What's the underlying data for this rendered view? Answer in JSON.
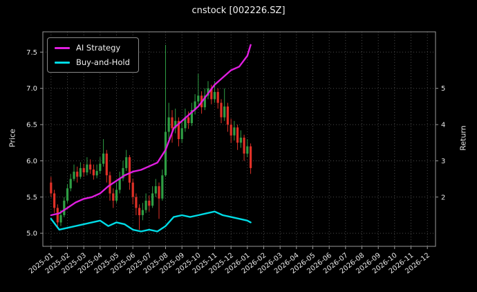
{
  "window": {
    "title": "cnstock [002226.SZ]"
  },
  "legend": [
    {
      "label": "AI Strategy",
      "color": "#e01ee0"
    },
    {
      "label": "Buy-and-Hold",
      "color": "#00dce6"
    }
  ],
  "chart_data": {
    "type": "candlestick+line",
    "title": "cnstock [002226.SZ]",
    "xlabel": "",
    "ylabel_left": "Price",
    "ylabel_right": "Return",
    "grid": true,
    "legend_position": "upper-left",
    "x_tick_labels": [
      "2025-01",
      "2025-02",
      "2025-03",
      "2025-04",
      "2025-05",
      "2025-06",
      "2025-07",
      "2025-08",
      "2025-09",
      "2025-10",
      "2025-11",
      "2025-12",
      "2026-01",
      "2026-02",
      "2026-03",
      "2026-04",
      "2026-05",
      "2026-06",
      "2026-07",
      "2026-08",
      "2026-09",
      "2026-10",
      "2026-11",
      "2026-12"
    ],
    "x_range": [
      -0.5,
      23.5
    ],
    "y_left_ticks": [
      5.0,
      5.5,
      6.0,
      6.5,
      7.0,
      7.5
    ],
    "y_left_range": [
      4.82,
      7.78
    ],
    "y_right_ticks": [
      2,
      3,
      4,
      5
    ],
    "y_right_range": [
      0.64,
      6.56
    ],
    "candle_colors": {
      "up": "#2f9e44",
      "down": "#e03127"
    },
    "candles": [
      [
        0.0,
        5.7,
        5.78,
        5.5,
        5.55
      ],
      [
        0.2,
        5.55,
        5.6,
        5.28,
        5.35
      ],
      [
        0.4,
        5.35,
        5.4,
        5.08,
        5.15
      ],
      [
        0.6,
        5.15,
        5.32,
        5.1,
        5.25
      ],
      [
        0.8,
        5.25,
        5.5,
        5.22,
        5.45
      ],
      [
        1.0,
        5.45,
        5.68,
        5.42,
        5.62
      ],
      [
        1.2,
        5.62,
        5.82,
        5.58,
        5.75
      ],
      [
        1.4,
        5.75,
        5.95,
        5.72,
        5.85
      ],
      [
        1.6,
        5.85,
        5.92,
        5.7,
        5.78
      ],
      [
        1.8,
        5.78,
        5.98,
        5.75,
        5.9
      ],
      [
        2.0,
        5.9,
        5.96,
        5.78,
        5.84
      ],
      [
        2.2,
        5.84,
        6.05,
        5.8,
        5.95
      ],
      [
        2.4,
        5.95,
        6.02,
        5.82,
        5.88
      ],
      [
        2.6,
        5.88,
        5.95,
        5.74,
        5.8
      ],
      [
        2.8,
        5.8,
        5.95,
        5.76,
        5.86
      ],
      [
        3.0,
        5.86,
        6.05,
        5.82,
        5.96
      ],
      [
        3.2,
        5.96,
        6.3,
        5.92,
        6.1
      ],
      [
        3.4,
        6.1,
        6.15,
        5.7,
        5.8
      ],
      [
        3.6,
        5.8,
        5.85,
        5.45,
        5.55
      ],
      [
        3.8,
        5.55,
        5.62,
        5.35,
        5.45
      ],
      [
        4.0,
        5.45,
        5.7,
        5.42,
        5.6
      ],
      [
        4.2,
        5.6,
        5.85,
        5.55,
        5.76
      ],
      [
        4.4,
        5.76,
        6.0,
        5.72,
        5.9
      ],
      [
        4.6,
        5.9,
        6.15,
        5.86,
        6.05
      ],
      [
        4.8,
        6.05,
        6.08,
        5.6,
        5.7
      ],
      [
        5.0,
        5.7,
        5.75,
        5.4,
        5.5
      ],
      [
        5.2,
        5.5,
        5.55,
        5.25,
        5.35
      ],
      [
        5.4,
        5.35,
        5.4,
        5.05,
        5.25
      ],
      [
        5.6,
        5.25,
        5.42,
        5.18,
        5.32
      ],
      [
        5.8,
        5.32,
        5.55,
        5.28,
        5.45
      ],
      [
        6.0,
        5.45,
        5.52,
        5.3,
        5.38
      ],
      [
        6.2,
        5.38,
        5.65,
        5.35,
        5.55
      ],
      [
        6.4,
        5.55,
        5.75,
        5.5,
        5.65
      ],
      [
        6.6,
        5.65,
        5.7,
        5.2,
        5.48
      ],
      [
        6.8,
        5.48,
        5.88,
        5.45,
        5.8
      ],
      [
        7.0,
        5.8,
        7.6,
        5.78,
        6.4
      ],
      [
        7.2,
        6.4,
        6.8,
        6.3,
        6.6
      ],
      [
        7.4,
        6.6,
        6.7,
        6.25,
        6.45
      ],
      [
        7.6,
        6.45,
        6.72,
        6.38,
        6.55
      ],
      [
        7.8,
        6.55,
        6.6,
        6.2,
        6.3
      ],
      [
        8.0,
        6.3,
        6.55,
        6.25,
        6.45
      ],
      [
        8.2,
        6.45,
        6.72,
        6.4,
        6.6
      ],
      [
        8.4,
        6.6,
        6.68,
        6.44,
        6.52
      ],
      [
        8.6,
        6.52,
        6.8,
        6.48,
        6.7
      ],
      [
        8.8,
        6.7,
        6.92,
        6.64,
        6.82
      ],
      [
        9.0,
        6.82,
        7.2,
        6.78,
        6.9
      ],
      [
        9.2,
        6.9,
        6.96,
        6.65,
        6.74
      ],
      [
        9.4,
        6.74,
        7.0,
        6.7,
        6.9
      ],
      [
        9.6,
        6.9,
        7.1,
        6.85,
        7.0
      ],
      [
        9.8,
        7.0,
        7.05,
        6.78,
        6.85
      ],
      [
        10.0,
        6.85,
        7.1,
        6.8,
        6.95
      ],
      [
        10.2,
        6.95,
        7.0,
        6.72,
        6.8
      ],
      [
        10.4,
        6.8,
        6.85,
        6.52,
        6.6
      ],
      [
        10.6,
        6.6,
        7.0,
        6.55,
        6.75
      ],
      [
        10.8,
        6.75,
        6.8,
        6.4,
        6.5
      ],
      [
        11.0,
        6.5,
        6.58,
        6.25,
        6.35
      ],
      [
        11.2,
        6.35,
        6.55,
        6.28,
        6.46
      ],
      [
        11.4,
        6.46,
        6.5,
        6.15,
        6.25
      ],
      [
        11.6,
        6.25,
        6.42,
        6.18,
        6.32
      ],
      [
        11.8,
        6.32,
        6.36,
        6.0,
        6.1
      ],
      [
        12.0,
        6.1,
        6.3,
        6.05,
        6.2
      ],
      [
        12.2,
        6.2,
        6.24,
        5.82,
        5.9
      ]
    ],
    "series": [
      {
        "name": "AI Strategy",
        "axis": "right",
        "color": "#e01ee0",
        "width": 2.4,
        "x": [
          0,
          0.5,
          1,
          1.5,
          2,
          2.5,
          3,
          3.5,
          4,
          4.5,
          5,
          5.5,
          6,
          6.5,
          7,
          7.5,
          8,
          8.5,
          9,
          9.5,
          10,
          10.5,
          11,
          11.5,
          12,
          12.2
        ],
        "y": [
          1.5,
          1.55,
          1.7,
          1.85,
          1.95,
          2.0,
          2.1,
          2.3,
          2.45,
          2.6,
          2.7,
          2.75,
          2.85,
          2.95,
          3.3,
          3.9,
          4.1,
          4.3,
          4.5,
          4.8,
          5.1,
          5.3,
          5.5,
          5.6,
          5.9,
          6.2
        ]
      },
      {
        "name": "Buy-and-Hold",
        "axis": "right",
        "color": "#00dce6",
        "width": 2.4,
        "x": [
          0,
          0.5,
          1,
          1.5,
          2,
          2.5,
          3,
          3.5,
          4,
          4.5,
          5,
          5.5,
          6,
          6.5,
          7,
          7.5,
          8,
          8.5,
          9,
          9.5,
          10,
          10.5,
          11,
          11.5,
          12,
          12.2
        ],
        "y": [
          1.4,
          1.1,
          1.15,
          1.2,
          1.25,
          1.3,
          1.35,
          1.2,
          1.3,
          1.25,
          1.1,
          1.05,
          1.1,
          1.05,
          1.2,
          1.45,
          1.5,
          1.45,
          1.5,
          1.55,
          1.6,
          1.5,
          1.45,
          1.4,
          1.35,
          1.3
        ]
      }
    ],
    "colors": {
      "background": "#000000",
      "grid": "#4d4d4d",
      "spine": "#9a9a9a",
      "tick_text": "#e8e8e8"
    }
  }
}
